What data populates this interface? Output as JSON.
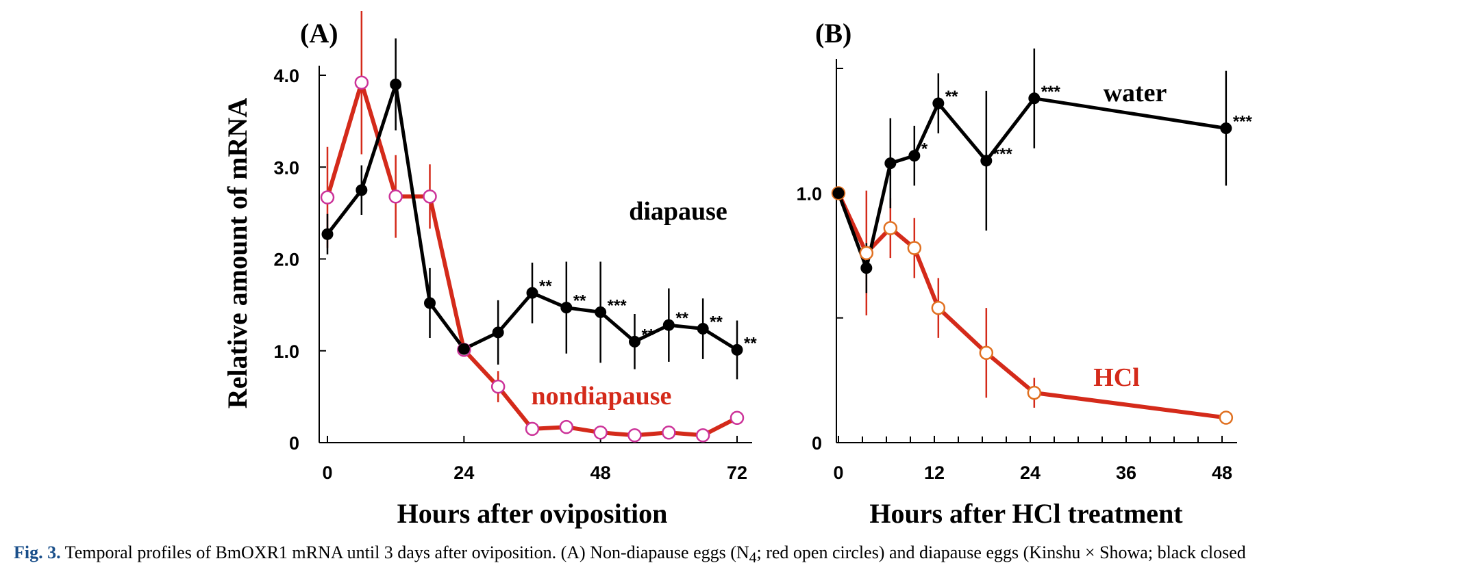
{
  "colors": {
    "black": "#000000",
    "red": "#d42a1a",
    "pink_marker": "#cc3399",
    "orange_marker": "#e07020"
  },
  "chart_data": [
    {
      "type": "line",
      "panel_label": "(A)",
      "xlabel": "Hours after oviposition",
      "ylabel": "Relative amount of mRNA",
      "xlim": [
        0,
        72
      ],
      "ylim": [
        0,
        4.0
      ],
      "xticks": [
        0,
        24,
        48,
        72
      ],
      "xtick_labels": [
        "0",
        "24",
        "48",
        "72"
      ],
      "yticks": [
        0,
        1.0,
        2.0,
        3.0,
        4.0
      ],
      "ytick_labels": [
        "0",
        "1.0",
        "2.0",
        "3.0",
        "4.0"
      ],
      "series": [
        {
          "name": "diapause",
          "color": "#000000",
          "marker": "filled-circle",
          "x": [
            0,
            6,
            12,
            18,
            24,
            30,
            36,
            42,
            48,
            54,
            60,
            66,
            72
          ],
          "y": [
            2.27,
            2.75,
            3.9,
            1.52,
            1.02,
            1.2,
            1.63,
            1.47,
            1.42,
            1.1,
            1.28,
            1.24,
            1.01
          ],
          "err": [
            0.22,
            0.27,
            0.5,
            0.38,
            0.0,
            0.35,
            0.33,
            0.5,
            0.55,
            0.3,
            0.4,
            0.33,
            0.32
          ],
          "sig": [
            "",
            "",
            "",
            "",
            "",
            "",
            "**",
            "**",
            "***",
            "**",
            "**",
            "**",
            "**"
          ]
        },
        {
          "name": "nondiapause",
          "color": "#d42a1a",
          "marker": "open-circle",
          "marker_edge": "#cc3399",
          "x": [
            0,
            6,
            12,
            18,
            24,
            30,
            36,
            42,
            48,
            54,
            60,
            66,
            72
          ],
          "y": [
            2.67,
            3.92,
            2.68,
            2.68,
            1.01,
            0.61,
            0.15,
            0.17,
            0.11,
            0.08,
            0.11,
            0.08,
            0.27
          ],
          "err": [
            0.55,
            0.78,
            0.45,
            0.35,
            0.0,
            0.17,
            0.06,
            0.06,
            0.04,
            0.03,
            0.04,
            0.03,
            0.05
          ]
        }
      ]
    },
    {
      "type": "line",
      "panel_label": "(B)",
      "xlabel": "Hours after HCl treatment",
      "ylabel": "",
      "xlim": [
        0,
        48
      ],
      "ylim": [
        0,
        1.5
      ],
      "xticks": [
        0,
        12,
        24,
        36,
        48
      ],
      "minor_xticks": [
        3,
        6,
        9,
        15,
        18,
        21,
        27,
        30,
        33,
        39,
        42,
        45
      ],
      "xtick_labels": [
        "0",
        "12",
        "24",
        "36",
        "48"
      ],
      "yticks": [
        0,
        0.5,
        1.0,
        1.5
      ],
      "ytick_labels": [
        "0",
        "",
        "1.0",
        ""
      ],
      "series": [
        {
          "name": "water",
          "color": "#000000",
          "marker": "filled-circle",
          "x": [
            0,
            3.5,
            6.5,
            9.5,
            12.5,
            18.5,
            24.5,
            48.5
          ],
          "y": [
            1.0,
            0.7,
            1.12,
            1.15,
            1.36,
            1.13,
            1.38,
            1.26
          ],
          "err": [
            0.0,
            0.1,
            0.18,
            0.12,
            0.12,
            0.28,
            0.2,
            0.23
          ],
          "sig": [
            "",
            "",
            "",
            "*",
            "**",
            "***",
            "***",
            "***"
          ]
        },
        {
          "name": "HCl",
          "color": "#d42a1a",
          "marker": "open-circle",
          "marker_edge": "#e07020",
          "x": [
            0,
            3.5,
            6.5,
            9.5,
            12.5,
            18.5,
            24.5,
            48.5
          ],
          "y": [
            1.0,
            0.76,
            0.86,
            0.78,
            0.54,
            0.36,
            0.2,
            0.1
          ],
          "err": [
            0.0,
            0.25,
            0.12,
            0.12,
            0.12,
            0.18,
            0.06,
            0.0
          ]
        }
      ]
    }
  ],
  "caption": {
    "fig_no": "Fig. 3.",
    "text": " Temporal profiles of BmOXR1 mRNA until 3 days after oviposition. (A) Non-diapause eggs (N",
    "sub": "4",
    "text_after": "; red open circles) and diapause eggs (Kinshu × Showa; black closed"
  }
}
